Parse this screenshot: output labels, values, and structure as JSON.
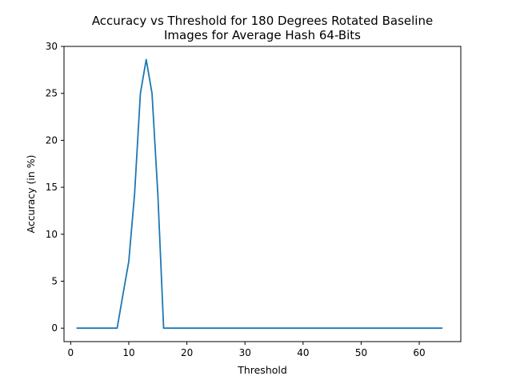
{
  "chart_data": {
    "type": "line",
    "title_line1": "Accuracy vs Threshold for 180 Degrees Rotated Baseline",
    "title_line2": "Images for Average Hash 64-Bits",
    "xlabel": "Threshold",
    "ylabel": "Accuracy (in %)",
    "xlim": [
      -1.15,
      67.15
    ],
    "ylim": [
      -1.43,
      30
    ],
    "xticks": [
      0,
      10,
      20,
      30,
      40,
      50,
      60
    ],
    "yticks": [
      0,
      5,
      10,
      15,
      20,
      25,
      30
    ],
    "grid": false,
    "legend": "none",
    "series": [
      {
        "color": "#1f77b4",
        "x": [
          1,
          2,
          3,
          4,
          5,
          6,
          7,
          8,
          9,
          10,
          11,
          12,
          13,
          14,
          15,
          16,
          17,
          18,
          19,
          20,
          21,
          22,
          23,
          24,
          25,
          26,
          27,
          28,
          29,
          30,
          31,
          32,
          33,
          34,
          35,
          36,
          37,
          38,
          39,
          40,
          41,
          42,
          43,
          44,
          45,
          46,
          47,
          48,
          49,
          50,
          51,
          52,
          53,
          54,
          55,
          56,
          57,
          58,
          59,
          60,
          61,
          62,
          63,
          64
        ],
        "y": [
          0,
          0,
          0,
          0,
          0,
          0,
          0,
          0,
          3.6,
          7.1,
          14.3,
          25.0,
          28.6,
          25.0,
          14.3,
          0,
          0,
          0,
          0,
          0,
          0,
          0,
          0,
          0,
          0,
          0,
          0,
          0,
          0,
          0,
          0,
          0,
          0,
          0,
          0,
          0,
          0,
          0,
          0,
          0,
          0,
          0,
          0,
          0,
          0,
          0,
          0,
          0,
          0,
          0,
          0,
          0,
          0,
          0,
          0,
          0,
          0,
          0,
          0,
          0,
          0,
          0,
          0,
          0
        ]
      }
    ]
  }
}
